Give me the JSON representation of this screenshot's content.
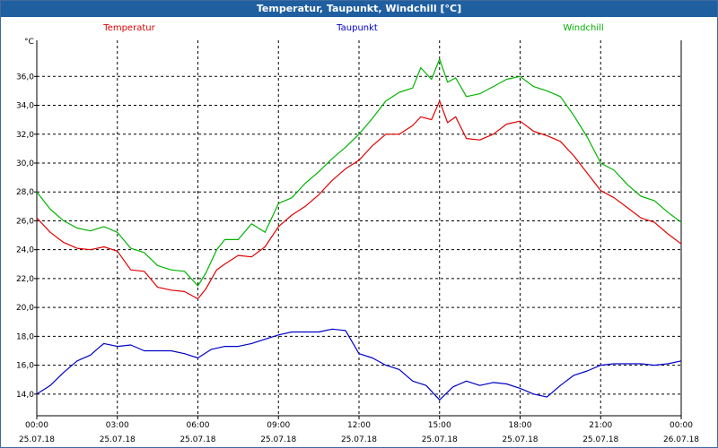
{
  "window": {
    "title": "Temperatur, Taupunkt, Windchill [°C]"
  },
  "colors": {
    "title_bar": "#1f5fa0",
    "grid": "#000000",
    "plot_bg": "#ffffff"
  },
  "chart_data": {
    "type": "line",
    "title": "Temperatur, Taupunkt, Windchill [°C]",
    "ylabel": "°C",
    "xlabel": "",
    "ylim": [
      12.5,
      38.5
    ],
    "xlim": [
      0,
      24
    ],
    "grid": true,
    "legend_position": "top",
    "yticks": [
      14,
      16,
      18,
      20,
      22,
      24,
      26,
      28,
      30,
      32,
      34,
      36
    ],
    "ytick_labels": [
      "14,0",
      "16,0",
      "18,0",
      "20,0",
      "22,0",
      "24,0",
      "26,0",
      "28,0",
      "30,0",
      "32,0",
      "34,0",
      "36,0"
    ],
    "xticks": [
      {
        "x": 0,
        "time": "00:00",
        "date": "25.07.18"
      },
      {
        "x": 3,
        "time": "03:00",
        "date": "25.07.18"
      },
      {
        "x": 6,
        "time": "06:00",
        "date": "25.07.18"
      },
      {
        "x": 9,
        "time": "09:00",
        "date": "25.07.18"
      },
      {
        "x": 12,
        "time": "12:00",
        "date": "25.07.18"
      },
      {
        "x": 15,
        "time": "15:00",
        "date": "25.07.18"
      },
      {
        "x": 18,
        "time": "18:00",
        "date": "25.07.18"
      },
      {
        "x": 21,
        "time": "21:00",
        "date": "25.07.18"
      },
      {
        "x": 24,
        "time": "00:00",
        "date": "26.07.18"
      }
    ],
    "series": [
      {
        "name": "Temperatur",
        "color": "#e00000",
        "points": [
          [
            0,
            26.2
          ],
          [
            0.5,
            25.2
          ],
          [
            1,
            24.5
          ],
          [
            1.5,
            24.1
          ],
          [
            2,
            24.0
          ],
          [
            2.5,
            24.2
          ],
          [
            3,
            23.9
          ],
          [
            3.5,
            22.6
          ],
          [
            4,
            22.5
          ],
          [
            4.5,
            21.4
          ],
          [
            5,
            21.2
          ],
          [
            5.5,
            21.1
          ],
          [
            6,
            20.6
          ],
          [
            6.3,
            21.3
          ],
          [
            6.7,
            22.6
          ],
          [
            7,
            23.0
          ],
          [
            7.5,
            23.6
          ],
          [
            8,
            23.5
          ],
          [
            8.5,
            24.2
          ],
          [
            9,
            25.6
          ],
          [
            9.5,
            26.4
          ],
          [
            10,
            27.0
          ],
          [
            10.5,
            27.8
          ],
          [
            11,
            28.8
          ],
          [
            11.5,
            29.6
          ],
          [
            12,
            30.2
          ],
          [
            12.5,
            31.2
          ],
          [
            13,
            32.0
          ],
          [
            13.5,
            32.0
          ],
          [
            14,
            32.6
          ],
          [
            14.3,
            33.2
          ],
          [
            14.7,
            33.0
          ],
          [
            15,
            34.3
          ],
          [
            15.3,
            32.8
          ],
          [
            15.6,
            33.2
          ],
          [
            16,
            31.7
          ],
          [
            16.5,
            31.6
          ],
          [
            17,
            32.0
          ],
          [
            17.5,
            32.7
          ],
          [
            18,
            32.9
          ],
          [
            18.5,
            32.2
          ],
          [
            19,
            31.9
          ],
          [
            19.5,
            31.5
          ],
          [
            20,
            30.5
          ],
          [
            20.5,
            29.3
          ],
          [
            21,
            28.1
          ],
          [
            21.5,
            27.6
          ],
          [
            22,
            26.9
          ],
          [
            22.5,
            26.2
          ],
          [
            23,
            25.9
          ],
          [
            23.5,
            25.1
          ],
          [
            24,
            24.4
          ]
        ]
      },
      {
        "name": "Taupunkt",
        "color": "#0000c8",
        "points": [
          [
            0,
            14.0
          ],
          [
            0.5,
            14.6
          ],
          [
            1,
            15.5
          ],
          [
            1.5,
            16.3
          ],
          [
            2,
            16.7
          ],
          [
            2.3,
            17.2
          ],
          [
            2.5,
            17.5
          ],
          [
            3,
            17.3
          ],
          [
            3.5,
            17.4
          ],
          [
            4,
            17.0
          ],
          [
            4.5,
            17.0
          ],
          [
            5,
            17.0
          ],
          [
            5.5,
            16.8
          ],
          [
            6,
            16.5
          ],
          [
            6.5,
            17.1
          ],
          [
            7,
            17.3
          ],
          [
            7.5,
            17.3
          ],
          [
            8,
            17.5
          ],
          [
            8.5,
            17.8
          ],
          [
            9,
            18.1
          ],
          [
            9.5,
            18.3
          ],
          [
            10,
            18.3
          ],
          [
            10.5,
            18.3
          ],
          [
            11,
            18.5
          ],
          [
            11.5,
            18.4
          ],
          [
            12,
            16.8
          ],
          [
            12.5,
            16.5
          ],
          [
            13,
            16.0
          ],
          [
            13.5,
            15.7
          ],
          [
            14,
            14.9
          ],
          [
            14.5,
            14.6
          ],
          [
            15,
            13.6
          ],
          [
            15.5,
            14.5
          ],
          [
            16,
            14.9
          ],
          [
            16.5,
            14.6
          ],
          [
            17,
            14.8
          ],
          [
            17.5,
            14.7
          ],
          [
            18,
            14.4
          ],
          [
            18.5,
            14.0
          ],
          [
            19,
            13.8
          ],
          [
            19.5,
            14.6
          ],
          [
            20,
            15.3
          ],
          [
            20.5,
            15.6
          ],
          [
            21,
            16.0
          ],
          [
            21.5,
            16.1
          ],
          [
            22,
            16.1
          ],
          [
            22.5,
            16.1
          ],
          [
            23,
            16.0
          ],
          [
            23.5,
            16.1
          ],
          [
            24,
            16.3
          ]
        ]
      },
      {
        "name": "Windchill",
        "color": "#00b400",
        "points": [
          [
            0,
            28.0
          ],
          [
            0.5,
            26.8
          ],
          [
            1,
            26.0
          ],
          [
            1.5,
            25.5
          ],
          [
            2,
            25.3
          ],
          [
            2.5,
            25.6
          ],
          [
            3,
            25.2
          ],
          [
            3.5,
            24.1
          ],
          [
            4,
            23.8
          ],
          [
            4.5,
            22.9
          ],
          [
            5,
            22.6
          ],
          [
            5.5,
            22.5
          ],
          [
            6,
            21.5
          ],
          [
            6.3,
            22.4
          ],
          [
            6.7,
            24.0
          ],
          [
            7,
            24.7
          ],
          [
            7.5,
            24.7
          ],
          [
            8,
            25.8
          ],
          [
            8.5,
            25.2
          ],
          [
            9,
            27.2
          ],
          [
            9.5,
            27.6
          ],
          [
            10,
            28.6
          ],
          [
            10.5,
            29.4
          ],
          [
            11,
            30.3
          ],
          [
            11.5,
            31.1
          ],
          [
            12,
            32.0
          ],
          [
            12.5,
            33.1
          ],
          [
            13,
            34.3
          ],
          [
            13.5,
            34.9
          ],
          [
            14,
            35.2
          ],
          [
            14.3,
            36.6
          ],
          [
            14.7,
            35.8
          ],
          [
            15,
            37.2
          ],
          [
            15.3,
            35.6
          ],
          [
            15.6,
            35.9
          ],
          [
            16,
            34.6
          ],
          [
            16.5,
            34.8
          ],
          [
            17,
            35.3
          ],
          [
            17.5,
            35.8
          ],
          [
            18,
            36.0
          ],
          [
            18.5,
            35.3
          ],
          [
            19,
            35.0
          ],
          [
            19.5,
            34.6
          ],
          [
            20,
            33.3
          ],
          [
            20.5,
            31.8
          ],
          [
            21,
            30.0
          ],
          [
            21.5,
            29.5
          ],
          [
            22,
            28.5
          ],
          [
            22.5,
            27.7
          ],
          [
            23,
            27.4
          ],
          [
            23.5,
            26.6
          ],
          [
            24,
            25.9
          ]
        ]
      }
    ]
  }
}
